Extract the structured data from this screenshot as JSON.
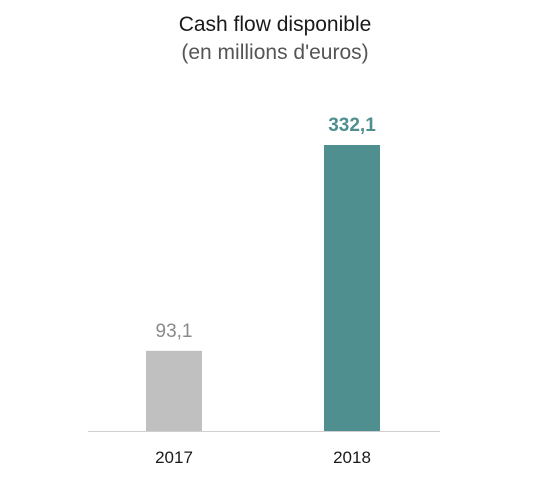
{
  "chart_data": {
    "type": "bar",
    "title": "Cash flow disponible",
    "subtitle": "(en millions d'euros)",
    "categories": [
      "2017",
      "2018"
    ],
    "values": [
      93.1,
      332.1
    ],
    "value_labels": [
      "93,1",
      "332,1"
    ],
    "bar_colors": [
      "#c0c0c0",
      "#4f8f8f"
    ],
    "value_label_colors": [
      "#8a8a8a",
      "#4f8f8f"
    ],
    "value_label_bold": [
      false,
      true
    ],
    "ylim": [
      0,
      332.1
    ],
    "grid": false,
    "legend": "none",
    "xlabel": "",
    "ylabel": ""
  }
}
